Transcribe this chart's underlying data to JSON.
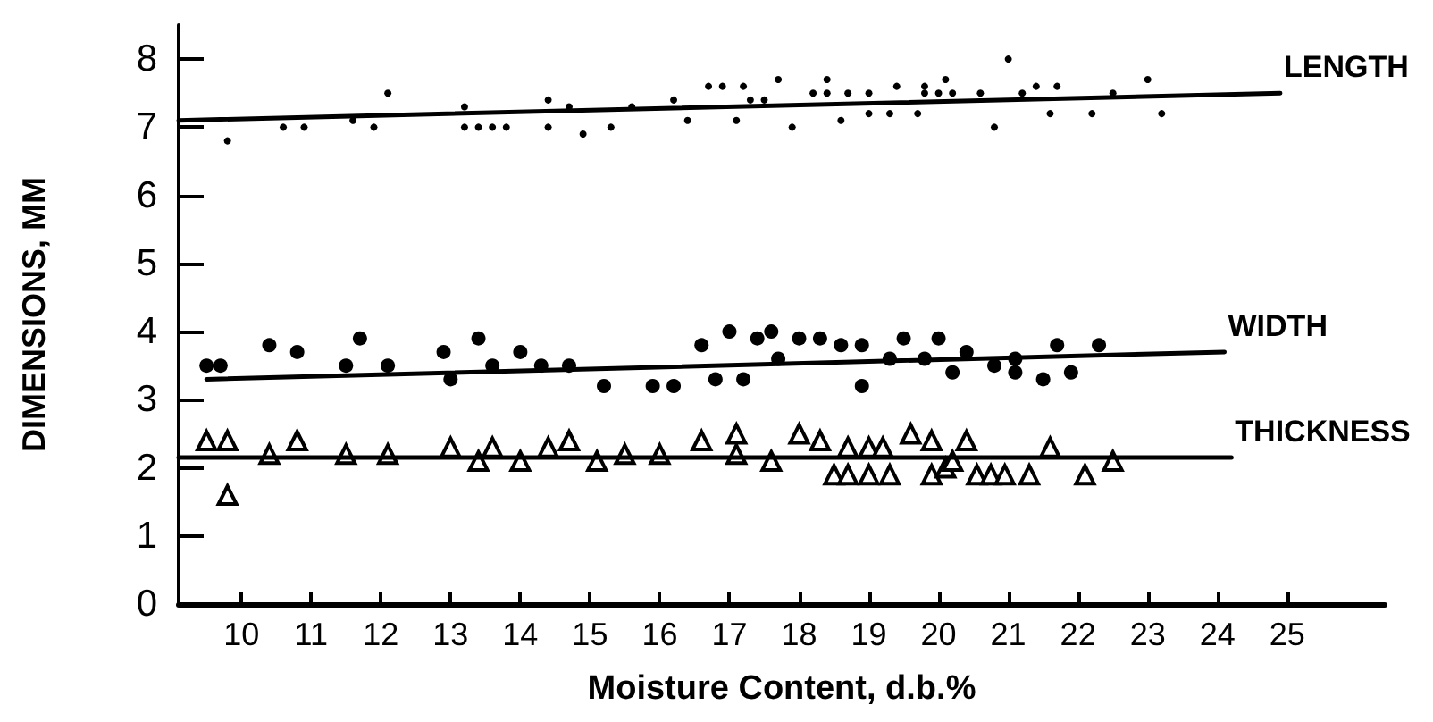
{
  "chart_data": {
    "type": "scatter",
    "xlabel": "Moisture Content, d.b.%",
    "ylabel": "DIMENSIONS, MM",
    "xlim": [
      9.1,
      26.4
    ],
    "xticks": [
      10,
      11,
      12,
      13,
      14,
      15,
      16,
      17,
      18,
      19,
      20,
      21,
      22,
      23,
      24,
      25
    ],
    "ylim": [
      0,
      8.5
    ],
    "yticks": [
      0,
      1,
      2,
      3,
      4,
      5,
      6,
      7,
      8
    ],
    "grid": false,
    "legend": false,
    "series": [
      {
        "marker": "circle",
        "color": "#000000",
        "x": [
          9.8,
          10.6,
          10.9,
          11.6,
          11.9,
          12.1,
          13.2,
          13.2,
          13.4,
          13.6,
          13.8,
          14.4,
          14.4,
          14.7,
          14.9,
          15.3,
          15.6,
          16.2,
          16.4,
          16.7,
          16.9,
          17.1,
          17.2,
          17.3,
          17.5,
          17.7,
          17.9,
          18.2,
          18.4,
          18.4,
          18.6,
          18.7,
          19.0,
          19.0,
          19.3,
          19.4,
          19.7,
          19.8,
          19.8,
          20.0,
          20.1,
          20.2,
          20.6,
          20.8,
          21.0,
          21.2,
          21.4,
          21.6,
          21.7,
          22.2,
          22.5,
          23.0,
          23.2
        ],
        "values": [
          6.8,
          7.0,
          7.0,
          7.1,
          7.0,
          7.5,
          7.3,
          7.0,
          7.0,
          7.0,
          7.0,
          7.4,
          7.0,
          7.3,
          6.9,
          7.0,
          7.3,
          7.4,
          7.1,
          7.6,
          7.6,
          7.1,
          7.6,
          7.4,
          7.4,
          7.7,
          7.0,
          7.5,
          7.7,
          7.5,
          7.1,
          7.5,
          7.5,
          7.2,
          7.2,
          7.6,
          7.2,
          7.6,
          7.5,
          7.5,
          7.7,
          7.5,
          7.5,
          7.0,
          8.0,
          7.5,
          7.6,
          7.2,
          7.6,
          7.2,
          7.5,
          7.7,
          7.2
        ]
      },
      {
        "marker": "circle",
        "color": "#000000",
        "x": [
          9.5,
          9.7,
          10.4,
          10.8,
          11.5,
          11.7,
          12.1,
          12.9,
          13.0,
          13.4,
          13.6,
          14.0,
          14.3,
          14.7,
          15.2,
          15.9,
          16.2,
          16.6,
          16.8,
          17.0,
          17.2,
          17.4,
          17.6,
          17.7,
          18.0,
          18.3,
          18.6,
          18.9,
          18.9,
          19.3,
          19.5,
          19.8,
          20.0,
          20.2,
          20.4,
          20.8,
          21.1,
          21.1,
          21.5,
          21.7,
          21.9,
          22.3
        ],
        "values": [
          3.5,
          3.5,
          3.8,
          3.7,
          3.5,
          3.9,
          3.5,
          3.7,
          3.3,
          3.9,
          3.5,
          3.7,
          3.5,
          3.5,
          3.2,
          3.2,
          3.2,
          3.8,
          3.3,
          4.0,
          3.3,
          3.9,
          4.0,
          3.6,
          3.9,
          3.9,
          3.8,
          3.8,
          3.2,
          3.6,
          3.9,
          3.6,
          3.9,
          3.4,
          3.7,
          3.5,
          3.4,
          3.6,
          3.3,
          3.8,
          3.4,
          3.8
        ]
      },
      {
        "marker": "triangle",
        "color": "#000000",
        "x": [
          9.5,
          9.8,
          9.8,
          10.4,
          10.8,
          11.5,
          12.1,
          13.0,
          13.4,
          13.6,
          14.0,
          14.4,
          14.7,
          15.1,
          15.5,
          16.0,
          16.6,
          17.1,
          17.1,
          17.6,
          18.0,
          18.3,
          18.5,
          18.7,
          18.7,
          19.0,
          19.0,
          19.2,
          19.3,
          19.6,
          19.9,
          19.9,
          20.1,
          20.2,
          20.4,
          20.55,
          20.75,
          20.95,
          21.3,
          21.6,
          22.1,
          22.5
        ],
        "values": [
          2.4,
          2.4,
          1.6,
          2.2,
          2.4,
          2.2,
          2.2,
          2.3,
          2.1,
          2.3,
          2.1,
          2.3,
          2.4,
          2.1,
          2.2,
          2.2,
          2.4,
          2.5,
          2.2,
          2.1,
          2.5,
          2.4,
          1.9,
          2.3,
          1.9,
          2.3,
          1.9,
          2.3,
          1.9,
          2.5,
          2.4,
          1.9,
          2.0,
          2.1,
          2.4,
          1.9,
          1.9,
          1.9,
          1.9,
          2.3,
          1.9,
          2.1
        ]
      },
      {
        "type": "line",
        "name": "LENGTH",
        "marker": "none",
        "color": "#000000",
        "x": [
          9.1,
          24.9
        ],
        "values": [
          7.1,
          7.5
        ]
      },
      {
        "type": "line",
        "name": "WIDTH",
        "marker": "none",
        "color": "#000000",
        "x": [
          9.5,
          24.1
        ],
        "values": [
          3.3,
          3.7
        ]
      },
      {
        "type": "line",
        "name": "THICKNESS",
        "marker": "none",
        "color": "#000000",
        "x": [
          9.1,
          24.2
        ],
        "values": [
          2.15,
          2.15
        ]
      }
    ]
  }
}
